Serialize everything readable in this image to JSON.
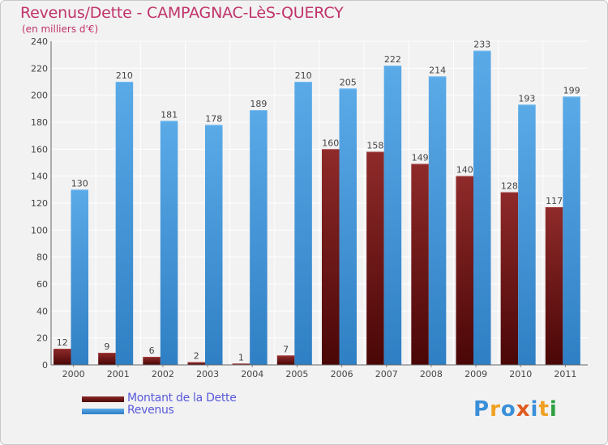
{
  "title": "Revenus/Dette - CAMPAGNAC-LèS-QUERCY",
  "subtitle": "(en milliers d'€)",
  "logo_text": "Proxiti",
  "colors": {
    "dette": "#7a1414",
    "revenus": "#4d9fe0",
    "title": "#c0336a",
    "legend_text": "#5a5adc"
  },
  "chart_data": {
    "type": "bar",
    "title": "Revenus/Dette - CAMPAGNAC-LèS-QUERCY",
    "ylabel": "(en milliers d'€)",
    "categories": [
      "2000",
      "2001",
      "2002",
      "2003",
      "2004",
      "2005",
      "2006",
      "2007",
      "2008",
      "2009",
      "2010",
      "2011"
    ],
    "series": [
      {
        "name": "Montant de la Dette",
        "values": [
          12,
          9,
          6,
          2,
          1,
          7,
          160,
          158,
          149,
          140,
          128,
          117
        ]
      },
      {
        "name": "Revenus",
        "values": [
          130,
          210,
          181,
          178,
          189,
          210,
          205,
          222,
          214,
          233,
          193,
          199
        ]
      }
    ],
    "ylim": [
      0,
      240
    ],
    "yticks": [
      0,
      20,
      40,
      60,
      80,
      100,
      120,
      140,
      160,
      180,
      200,
      220,
      240
    ],
    "grid": true,
    "legend_position": "bottom-left"
  }
}
